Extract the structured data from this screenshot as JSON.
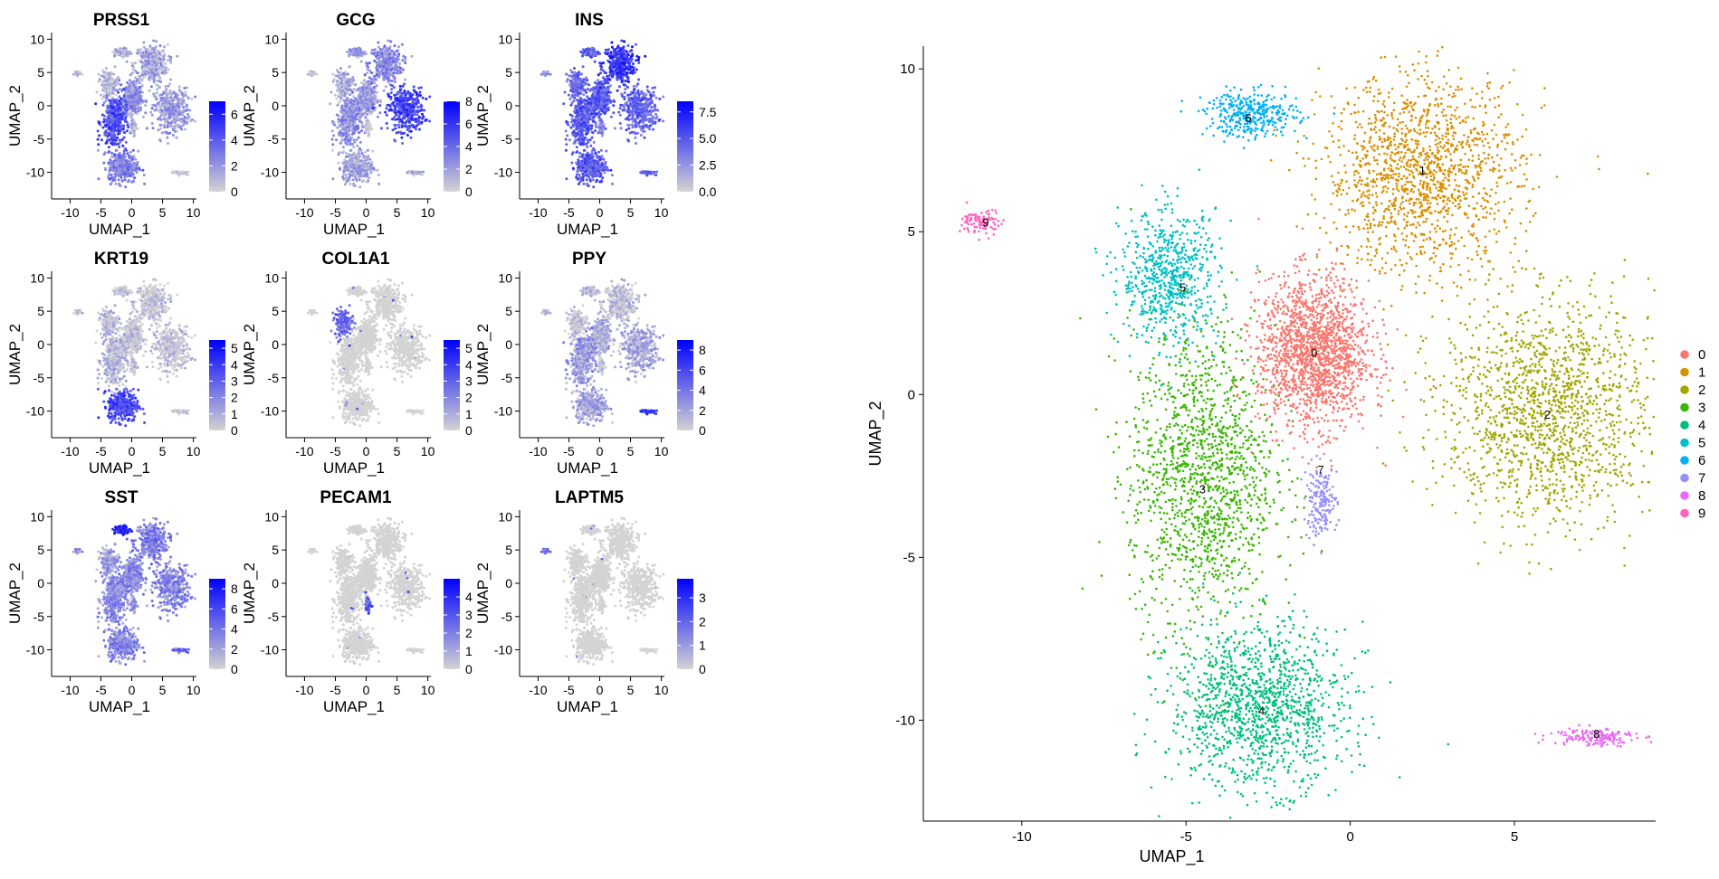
{
  "figure_colors": {
    "grey": "#d3d3d3",
    "feature_high": "#0000ff",
    "axis": "#000000"
  },
  "chart_data": [
    {
      "type": "scatter",
      "title": "PRSS1",
      "xlabel": "UMAP_1",
      "ylabel": "UMAP_2",
      "xticks": [
        -10,
        -5,
        0,
        5,
        10
      ],
      "yticks": [
        -10,
        -5,
        0,
        5,
        10
      ],
      "xlim": [
        -13,
        10.5
      ],
      "ylim": [
        -14,
        11
      ],
      "legend": {
        "ticks": [
          "6",
          "4",
          "2",
          "0"
        ],
        "min": 0,
        "max": 7
      },
      "expression_focus": "left arm and lower lobe (clusters 3, 4)"
    },
    {
      "type": "scatter",
      "title": "GCG",
      "xlabel": "UMAP_1",
      "ylabel": "UMAP_2",
      "xticks": [
        -10,
        -5,
        0,
        5,
        10
      ],
      "yticks": [
        -10,
        -5,
        0,
        5,
        10
      ],
      "xlim": [
        -13,
        10.5
      ],
      "ylim": [
        -14,
        11
      ],
      "legend": {
        "ticks": [
          "8",
          "6",
          "4",
          "2",
          "0"
        ],
        "min": 0,
        "max": 8
      },
      "expression_focus": "right arm (cluster 2)"
    },
    {
      "type": "scatter",
      "title": "INS",
      "xlabel": "UMAP_1",
      "ylabel": "UMAP_2",
      "xticks": [
        -10,
        -5,
        0,
        5,
        10
      ],
      "yticks": [
        -10,
        -5,
        0,
        5,
        10
      ],
      "xlim": [
        -13,
        10.5
      ],
      "ylim": [
        -14,
        11
      ],
      "legend": {
        "ticks": [
          "7.5",
          "5.0",
          "2.5",
          "0.0"
        ],
        "min": 0,
        "max": 8.5
      },
      "expression_focus": "broad, strongest in upper-right (cluster 1)"
    },
    {
      "type": "scatter",
      "title": "KRT19",
      "xlabel": "UMAP_1",
      "ylabel": "UMAP_2",
      "xticks": [
        -10,
        -5,
        0,
        5,
        10
      ],
      "yticks": [
        -10,
        -5,
        0,
        5,
        10
      ],
      "xlim": [
        -13,
        10.5
      ],
      "ylim": [
        -14,
        11
      ],
      "legend": {
        "ticks": [
          "5",
          "4",
          "3",
          "2",
          "1",
          "0"
        ],
        "min": 0,
        "max": 5.5
      },
      "expression_focus": "lower lobe (cluster 4)"
    },
    {
      "type": "scatter",
      "title": "COL1A1",
      "xlabel": "UMAP_1",
      "ylabel": "UMAP_2",
      "xticks": [
        -10,
        -5,
        0,
        5,
        10
      ],
      "yticks": [
        -10,
        -5,
        0,
        5,
        10
      ],
      "xlim": [
        -13,
        10.5
      ],
      "ylim": [
        -14,
        11
      ],
      "legend": {
        "ticks": [
          "5",
          "4",
          "3",
          "2",
          "1",
          "0"
        ],
        "min": 0,
        "max": 5.5
      },
      "expression_focus": "small cluster 5 region"
    },
    {
      "type": "scatter",
      "title": "PPY",
      "xlabel": "UMAP_1",
      "ylabel": "UMAP_2",
      "xticks": [
        -10,
        -5,
        0,
        5,
        10
      ],
      "yticks": [
        -10,
        -5,
        0,
        5,
        10
      ],
      "xlim": [
        -13,
        10.5
      ],
      "ylim": [
        -14,
        11
      ],
      "legend": {
        "ticks": [
          "8",
          "6",
          "4",
          "2",
          "0"
        ],
        "min": 0,
        "max": 9
      },
      "expression_focus": "cluster 8 (bottom right)"
    },
    {
      "type": "scatter",
      "title": "SST",
      "xlabel": "UMAP_1",
      "ylabel": "UMAP_2",
      "xticks": [
        -10,
        -5,
        0,
        5,
        10
      ],
      "yticks": [
        -10,
        -5,
        0,
        5,
        10
      ],
      "xlim": [
        -13,
        10.5
      ],
      "ylim": [
        -14,
        11
      ],
      "legend": {
        "ticks": [
          "8",
          "6",
          "4",
          "2",
          "0"
        ],
        "min": 0,
        "max": 9
      },
      "expression_focus": "cluster 6 (top)"
    },
    {
      "type": "scatter",
      "title": "PECAM1",
      "xlabel": "UMAP_1",
      "ylabel": "UMAP_2",
      "xticks": [
        -10,
        -5,
        0,
        5,
        10
      ],
      "yticks": [
        -10,
        -5,
        0,
        5,
        10
      ],
      "xlim": [
        -13,
        10.5
      ],
      "ylim": [
        -14,
        11
      ],
      "legend": {
        "ticks": [
          "4",
          "3",
          "2",
          "1",
          "0"
        ],
        "min": 0,
        "max": 5
      },
      "expression_focus": "cluster 7"
    },
    {
      "type": "scatter",
      "title": "LAPTM5",
      "xlabel": "UMAP_1",
      "ylabel": "UMAP_2",
      "xticks": [
        -10,
        -5,
        0,
        5,
        10
      ],
      "yticks": [
        -10,
        -5,
        0,
        5,
        10
      ],
      "xlim": [
        -13,
        10.5
      ],
      "ylim": [
        -14,
        11
      ],
      "legend": {
        "ticks": [
          "3",
          "2",
          "1",
          "0"
        ],
        "min": 0,
        "max": 3.8
      },
      "expression_focus": "cluster 9 (far left)"
    },
    {
      "type": "scatter",
      "title": "",
      "xlabel": "UMAP_1",
      "ylabel": "UMAP_2",
      "xticks": [
        -10,
        -5,
        0,
        5
      ],
      "yticks": [
        -10,
        -5,
        0,
        5,
        10
      ],
      "xlim": [
        -13.0,
        9.3
      ],
      "ylim": [
        -13.1,
        10.7
      ],
      "grid": false,
      "legend_position": "right",
      "clusters": [
        {
          "name": "0",
          "color": "#F8766D",
          "center": [
            -1.1,
            1.3
          ],
          "label_at": [
            -1.1,
            1.3
          ]
        },
        {
          "name": "1",
          "color": "#D89000",
          "center": [
            2.2,
            6.8
          ],
          "label_at": [
            2.2,
            6.9
          ]
        },
        {
          "name": "2",
          "color": "#A3A500",
          "center": [
            6.0,
            -0.5
          ],
          "label_at": [
            6.0,
            -0.6
          ]
        },
        {
          "name": "3",
          "color": "#39B600",
          "center": [
            -4.5,
            -2.5
          ],
          "label_at": [
            -4.5,
            -2.9
          ]
        },
        {
          "name": "4",
          "color": "#00BF7D",
          "center": [
            -2.8,
            -9.6
          ],
          "label_at": [
            -2.7,
            -9.7
          ]
        },
        {
          "name": "5",
          "color": "#00BFC4",
          "center": [
            -5.5,
            3.6
          ],
          "label_at": [
            -5.1,
            3.3
          ]
        },
        {
          "name": "6",
          "color": "#00B0F6",
          "center": [
            -3.0,
            8.6
          ],
          "label_at": [
            -3.1,
            8.5
          ]
        },
        {
          "name": "7",
          "color": "#9590FF",
          "center": [
            -0.9,
            -3.3
          ],
          "label_at": [
            -0.9,
            -2.3
          ]
        },
        {
          "name": "8",
          "color": "#E76BF3",
          "center": [
            7.4,
            -10.5
          ],
          "label_at": [
            7.5,
            -10.4
          ]
        },
        {
          "name": "9",
          "color": "#FF62BC",
          "center": [
            -11.2,
            5.3
          ],
          "label_at": [
            -11.1,
            5.3
          ]
        }
      ]
    }
  ]
}
